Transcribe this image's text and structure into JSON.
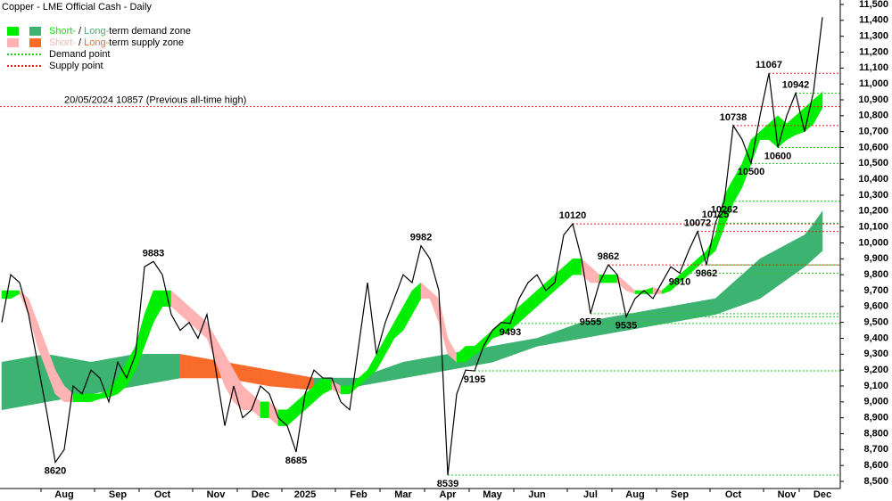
{
  "chart_data": {
    "type": "line",
    "title": "Copper - LME Official Cash - Daily",
    "categories": [
      null,
      null,
      null,
      null,
      null,
      null,
      null,
      "Aug",
      null,
      null,
      null,
      null,
      null,
      "Sep",
      null,
      null,
      null,
      null,
      "Oct",
      null,
      null,
      null,
      null,
      null,
      "Nov",
      null,
      null,
      null,
      null,
      "Dec",
      null,
      null,
      null,
      null,
      "2025",
      null,
      null,
      null,
      null,
      null,
      "Feb",
      null,
      null,
      null,
      null,
      "Mar",
      null,
      null,
      null,
      null,
      "Apr",
      null,
      null,
      null,
      null,
      "May",
      null,
      null,
      null,
      null,
      "Jun",
      null,
      null,
      null,
      null,
      null,
      "Jul",
      null,
      null,
      null,
      null,
      "Aug",
      null,
      null,
      null,
      null,
      "Sep",
      null,
      null,
      null,
      null,
      null,
      "Oct",
      null,
      null,
      null,
      null,
      null,
      "Nov",
      null,
      null,
      null,
      "Dec"
    ],
    "price": {
      "color": "#000000",
      "values": [
        9500,
        9800,
        9750,
        9550,
        9250,
        8950,
        8620,
        8700,
        9100,
        9050,
        9200,
        9150,
        9000,
        9250,
        9150,
        9300,
        9850,
        9883,
        9800,
        9550,
        9450,
        9500,
        9400,
        9550,
        9200,
        8850,
        9100,
        8900,
        8950,
        9100,
        9050,
        8900,
        8850,
        8685,
        9050,
        9200,
        9150,
        9150,
        9000,
        8950,
        9350,
        9750,
        9300,
        9500,
        9650,
        9800,
        9750,
        9982,
        9900,
        9700,
        8539,
        9050,
        9200,
        9195,
        9350,
        9450,
        9500,
        9493,
        9650,
        9750,
        9800,
        9700,
        9750,
        10050,
        10120,
        9900,
        9555,
        9750,
        9862,
        9800,
        9535,
        9650,
        9700,
        9650,
        9750,
        9850,
        9810,
        9950,
        10072,
        9862,
        10125,
        10262,
        10738,
        10650,
        10500,
        10800,
        11067,
        10600,
        10800,
        10942,
        10700,
        10950,
        11420
      ]
    },
    "short_band": {
      "upper": [
        9700,
        9700,
        9700,
        9650,
        9500,
        9350,
        9200,
        9100,
        9050,
        9050,
        9050,
        9050,
        9080,
        9150,
        9250,
        9350,
        9550,
        9700,
        9700,
        9700,
        9650,
        9600,
        9550,
        9500,
        9400,
        9300,
        9200,
        9100,
        9050,
        9000,
        9000,
        8950,
        8950,
        9000,
        9050,
        9100,
        9150,
        9130,
        9100,
        9100,
        9150,
        9200,
        9300,
        9400,
        9500,
        9600,
        9700,
        9750,
        9700,
        9650,
        9400,
        9300,
        9350,
        9350,
        9400,
        9450,
        9500,
        9550,
        9600,
        9650,
        9700,
        9750,
        9800,
        9850,
        9900,
        9900,
        9850,
        9800,
        9800,
        9800,
        9750,
        9700,
        9700,
        9720,
        9700,
        9750,
        9800,
        9850,
        9900,
        9950,
        10050,
        10300,
        10400,
        10500,
        10650,
        10700,
        10750,
        10800,
        10750,
        10800,
        10850,
        10900,
        10950
      ],
      "lower": [
        9650,
        9650,
        9680,
        9550,
        9350,
        9200,
        9050,
        9000,
        9000,
        9000,
        9000,
        9020,
        9030,
        9050,
        9100,
        9200,
        9350,
        9500,
        9600,
        9600,
        9550,
        9500,
        9450,
        9400,
        9250,
        9100,
        9000,
        8950,
        8950,
        8900,
        8900,
        8850,
        8850,
        8900,
        8950,
        9000,
        9050,
        9080,
        9050,
        9050,
        9100,
        9150,
        9200,
        9300,
        9400,
        9450,
        9550,
        9650,
        9650,
        9500,
        9300,
        9250,
        9250,
        9300,
        9330,
        9400,
        9420,
        9450,
        9500,
        9550,
        9600,
        9650,
        9700,
        9750,
        9800,
        9800,
        9750,
        9750,
        9750,
        9750,
        9700,
        9680,
        9680,
        9680,
        9680,
        9700,
        9750,
        9800,
        9850,
        9900,
        9950,
        10100,
        10250,
        10350,
        10500,
        10650,
        10650,
        10600,
        10650,
        10680,
        10700,
        10750,
        10850
      ]
    },
    "long_band": {
      "upper": [
        9250,
        9260,
        9270,
        9280,
        9290,
        9300,
        9290,
        9280,
        9270,
        9260,
        9250,
        9260,
        9270,
        9280,
        9290,
        9300,
        9300,
        9300,
        9300,
        9300,
        9300,
        9290,
        9280,
        9270,
        9260,
        9250,
        9240,
        9230,
        9220,
        9210,
        9200,
        9190,
        9180,
        9170,
        9160,
        9150,
        9150,
        9150,
        9150,
        9150,
        9150,
        9170,
        9190,
        9210,
        9230,
        9250,
        9260,
        9270,
        9280,
        9290,
        9300,
        9310,
        9320,
        9330,
        9340,
        9350,
        9360,
        9370,
        9380,
        9390,
        9400,
        9420,
        9440,
        9460,
        9480,
        9500,
        9510,
        9520,
        9530,
        9540,
        9550,
        9560,
        9570,
        9580,
        9590,
        9600,
        9610,
        9620,
        9630,
        9640,
        9650,
        9700,
        9750,
        9800,
        9850,
        9900,
        9930,
        9960,
        9990,
        10020,
        10050,
        10120,
        10200
      ],
      "lower": [
        8950,
        8960,
        8970,
        8980,
        8990,
        9000,
        9010,
        9020,
        9030,
        9040,
        9050,
        9060,
        9070,
        9080,
        9090,
        9100,
        9110,
        9120,
        9130,
        9140,
        9150,
        9150,
        9150,
        9150,
        9150,
        9150,
        9140,
        9130,
        9120,
        9110,
        9100,
        9095,
        9090,
        9085,
        9080,
        9080,
        9084,
        9088,
        9092,
        9096,
        9100,
        9110,
        9120,
        9130,
        9140,
        9150,
        9160,
        9170,
        9180,
        9190,
        9200,
        9210,
        9220,
        9230,
        9240,
        9250,
        9270,
        9290,
        9310,
        9330,
        9350,
        9360,
        9370,
        9380,
        9390,
        9400,
        9410,
        9420,
        9430,
        9440,
        9450,
        9460,
        9470,
        9480,
        9490,
        9500,
        9510,
        9520,
        9530,
        9540,
        9550,
        9570,
        9590,
        9610,
        9630,
        9650,
        9690,
        9730,
        9770,
        9810,
        9850,
        9900,
        9950
      ]
    },
    "colors": {
      "short_demand": "#00ee00",
      "long_demand": "#3cb371",
      "short_supply": "#ffb3b3",
      "long_supply": "#f96b2b",
      "demand_point": "#22cc22",
      "supply_point": "#dd2222"
    },
    "legend": {
      "demand_zone": {
        "short": "Short-",
        "sep": " / ",
        "long": "Long-",
        "rest": "term demand zone"
      },
      "supply_zone": {
        "short": "Short-",
        "sep": " / ",
        "long": "Long-",
        "rest": "term supply zone"
      },
      "demand_point": "Demand point",
      "supply_point": "Supply point"
    },
    "all_time_high": {
      "text": "20/05/2024 10857 (Previous all-time high)",
      "value": 10857
    },
    "extremes": [
      {
        "value": 8620,
        "index": 6,
        "level": null
      },
      {
        "value": 9883,
        "index": 17,
        "level": null
      },
      {
        "value": 8685,
        "index": 33,
        "level": null
      },
      {
        "value": 9982,
        "index": 47,
        "level": null
      },
      {
        "value": 8539,
        "index": 50,
        "level": "demand"
      },
      {
        "value": 9195,
        "index": 53,
        "level": "demand"
      },
      {
        "value": 9493,
        "index": 57,
        "level": "demand"
      },
      {
        "value": 10120,
        "index": 64,
        "level": "supply"
      },
      {
        "value": 9555,
        "index": 66,
        "level": "demand"
      },
      {
        "value": 9862,
        "index": 68,
        "level": "supply"
      },
      {
        "value": 9535,
        "index": 70,
        "level": "demand"
      },
      {
        "value": 9810,
        "index": 76,
        "level": "demand"
      },
      {
        "value": 10072,
        "index": 78,
        "level": "supply"
      },
      {
        "value": 9862,
        "index": 79,
        "level": "demand"
      },
      {
        "value": 10125,
        "index": 80,
        "level": "demand"
      },
      {
        "value": 10262,
        "index": 81,
        "level": "demand"
      },
      {
        "value": 10738,
        "index": 82,
        "level": "supply"
      },
      {
        "value": 10500,
        "index": 84,
        "level": "demand"
      },
      {
        "value": 11067,
        "index": 86,
        "level": "supply"
      },
      {
        "value": 10600,
        "index": 87,
        "level": "demand"
      },
      {
        "value": 10942,
        "index": 89,
        "level": "demand"
      }
    ],
    "ylim": [
      8455,
      11528
    ],
    "yticks": [
      {
        "value": 8500,
        "label": "8,500"
      },
      {
        "value": 8600,
        "label": "8,600"
      },
      {
        "value": 8700,
        "label": "8,700"
      },
      {
        "value": 8800,
        "label": "8,800"
      },
      {
        "value": 8900,
        "label": "8,900"
      },
      {
        "value": 9000,
        "label": "9,000"
      },
      {
        "value": 9100,
        "label": "9,100"
      },
      {
        "value": 9200,
        "label": "9,200"
      },
      {
        "value": 9300,
        "label": "9,300"
      },
      {
        "value": 9400,
        "label": "9,400"
      },
      {
        "value": 9500,
        "label": "9,500"
      },
      {
        "value": 9600,
        "label": "9,600"
      },
      {
        "value": 9700,
        "label": "9,700"
      },
      {
        "value": 9800,
        "label": "9,800"
      },
      {
        "value": 9900,
        "label": "9,900"
      },
      {
        "value": 10000,
        "label": "10,000"
      },
      {
        "value": 10100,
        "label": "10,100"
      },
      {
        "value": 10200,
        "label": "10,200"
      },
      {
        "value": 10300,
        "label": "10,300"
      },
      {
        "value": 10400,
        "label": "10,400"
      },
      {
        "value": 10500,
        "label": "10,500"
      },
      {
        "value": 10600,
        "label": "10,600"
      },
      {
        "value": 10700,
        "label": "10,700"
      },
      {
        "value": 10800,
        "label": "10,800"
      },
      {
        "value": 10900,
        "label": "10,900"
      },
      {
        "value": 11000,
        "label": "11,000"
      },
      {
        "value": 11100,
        "label": "11,100"
      },
      {
        "value": 11200,
        "label": "11,200"
      },
      {
        "value": 11300,
        "label": "11,300"
      },
      {
        "value": 11400,
        "label": "11,400"
      },
      {
        "value": 11500,
        "label": "11,500"
      }
    ]
  }
}
